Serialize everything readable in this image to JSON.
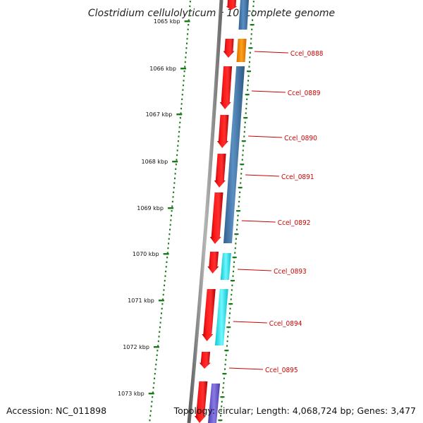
{
  "title": "Clostridium cellulolyticum H10, complete genome",
  "footer": {
    "accession": "Accession: NC_011898",
    "topology": "Topology: circular; Length: 4,068,724 bp; Genes: 3,477"
  },
  "colors": {
    "gene_red": "#ee0000",
    "steelblue": "#3f74a8",
    "orange": "#f28c00",
    "cyan": "#19e6f0",
    "purple": "#6a5acd",
    "backbone": "#808080",
    "tick_green": "#1a7a1a",
    "label_red": "#cc0000"
  },
  "ruler": [
    {
      "label": "1065 kbp"
    },
    {
      "label": "1066 kbp"
    },
    {
      "label": "1067 kbp"
    },
    {
      "label": "1068 kbp"
    },
    {
      "label": "1069 kbp"
    },
    {
      "label": "1070 kbp"
    },
    {
      "label": "1071 kbp"
    },
    {
      "label": "1072 kbp"
    },
    {
      "label": "1073 kbp"
    }
  ],
  "gene_labels": [
    {
      "name": "Ccel_0888"
    },
    {
      "name": "Ccel_0889"
    },
    {
      "name": "Ccel_0890"
    },
    {
      "name": "Ccel_0891"
    },
    {
      "name": "Ccel_0892"
    },
    {
      "name": "Ccel_0893"
    },
    {
      "name": "Ccel_0894"
    },
    {
      "name": "Ccel_0895"
    }
  ]
}
